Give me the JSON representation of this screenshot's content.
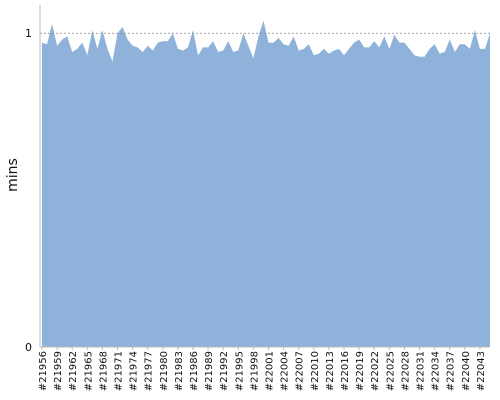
{
  "chart_data": {
    "type": "area",
    "y_label": "mins",
    "color": "#8fb2db",
    "categories": [
      "#21956",
      null,
      null,
      "#21959",
      null,
      null,
      "#21962",
      null,
      null,
      "#21965",
      null,
      null,
      "#21968",
      null,
      null,
      "#21971",
      null,
      null,
      "#21974",
      null,
      null,
      "#21977",
      null,
      null,
      "#21980",
      null,
      null,
      "#21983",
      null,
      null,
      "#21986",
      null,
      null,
      "#21989",
      null,
      null,
      "#21992",
      null,
      null,
      "#21995",
      null,
      null,
      "#21998",
      null,
      null,
      "#22001",
      null,
      null,
      "#22004",
      null,
      null,
      "#22007",
      null,
      null,
      "#22010",
      null,
      null,
      "#22013",
      null,
      null,
      "#22016",
      null,
      null,
      "#22019",
      null,
      null,
      "#22022",
      null,
      null,
      "#22025",
      null,
      null,
      "#22028",
      null,
      null,
      "#22031",
      null,
      null,
      "#22034",
      null,
      null,
      "#22037",
      null,
      null,
      "#22040",
      null,
      null,
      "#22043",
      null,
      null
    ],
    "values": [
      0.97,
      0.965,
      1.03,
      0.96,
      0.98,
      0.99,
      0.94,
      0.95,
      0.97,
      0.93,
      1.01,
      0.95,
      1.01,
      0.95,
      0.91,
      1.0,
      1.02,
      0.98,
      0.96,
      0.955,
      0.94,
      0.96,
      0.945,
      0.97,
      0.975,
      0.975,
      1.0,
      0.95,
      0.945,
      0.955,
      1.01,
      0.93,
      0.955,
      0.955,
      0.975,
      0.94,
      0.945,
      0.975,
      0.94,
      0.945,
      1.0,
      0.96,
      0.92,
      0.99,
      1.04,
      0.97,
      0.97,
      0.985,
      0.965,
      0.96,
      0.99,
      0.945,
      0.95,
      0.965,
      0.93,
      0.935,
      0.95,
      0.935,
      0.945,
      0.95,
      0.93,
      0.95,
      0.97,
      0.98,
      0.955,
      0.955,
      0.975,
      0.955,
      0.99,
      0.95,
      0.995,
      0.97,
      0.97,
      0.95,
      0.93,
      0.925,
      0.925,
      0.95,
      0.965,
      0.935,
      0.94,
      0.98,
      0.94,
      0.965,
      0.965,
      0.95,
      1.01,
      0.95,
      0.95,
      1.0
    ],
    "ylim": [
      0,
      1.09
    ],
    "yticks": [
      0,
      1
    ],
    "grid": true
  }
}
